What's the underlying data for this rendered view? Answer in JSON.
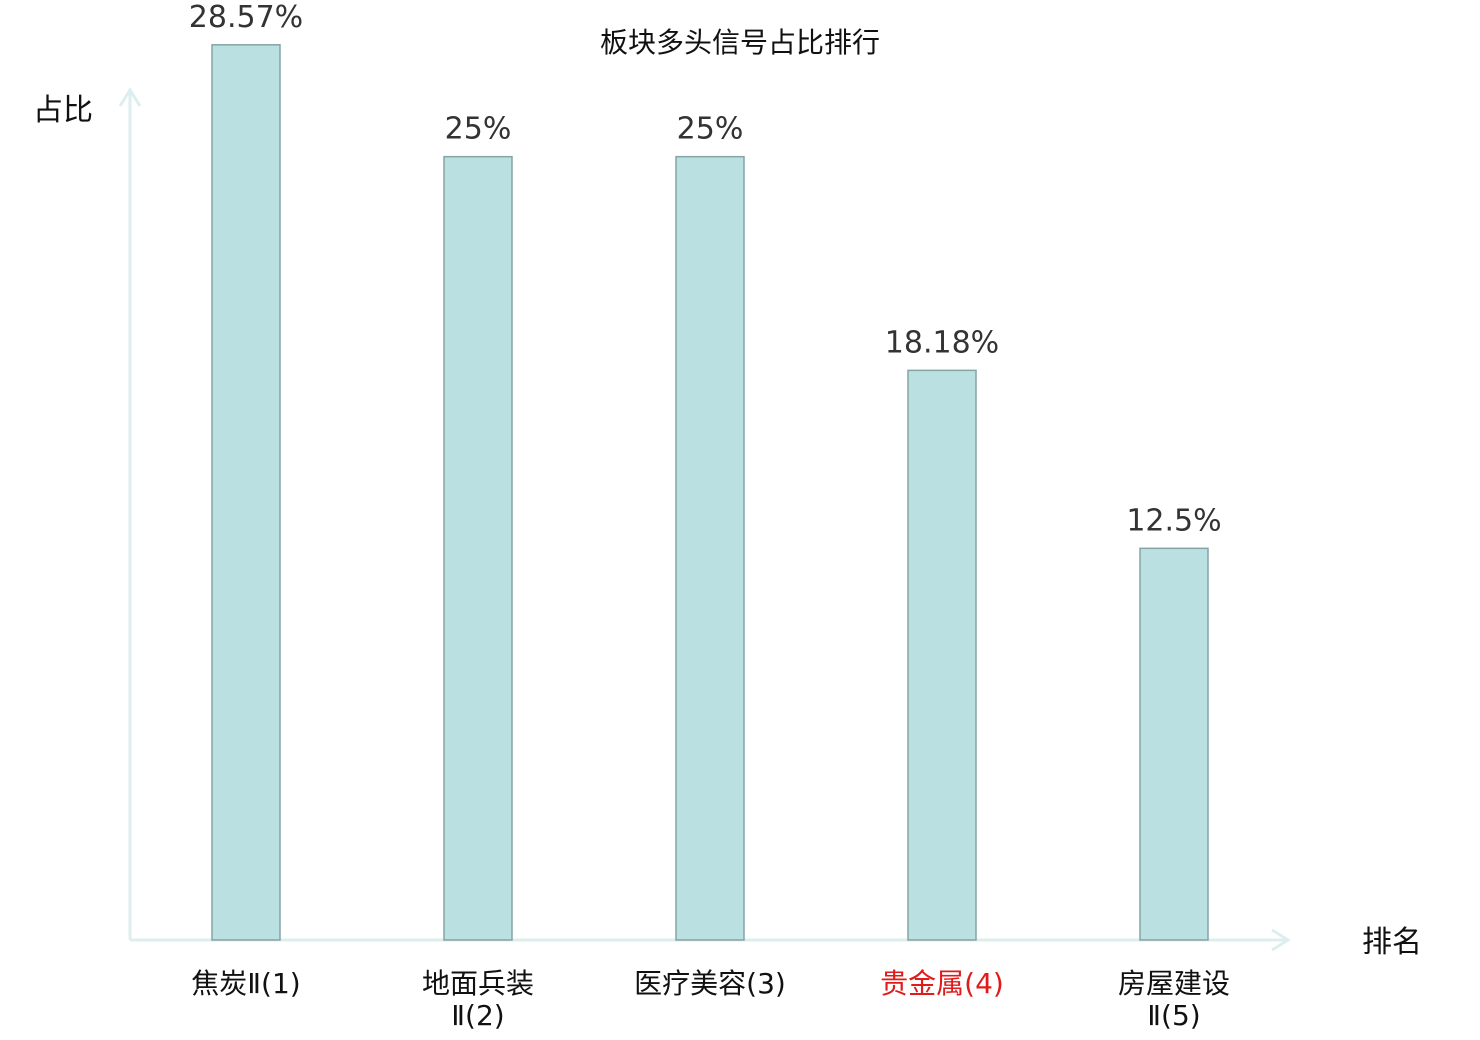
{
  "chart_data": {
    "type": "bar",
    "title": "板块多头信号占比排行",
    "ylabel": "占比",
    "xlabel": "排名",
    "ylim": [
      0,
      30
    ],
    "grid": false,
    "categories": [
      {
        "lines": [
          "焦炭Ⅱ(1)"
        ],
        "highlight": false
      },
      {
        "lines": [
          "地面兵装",
          "Ⅱ(2)"
        ],
        "highlight": false
      },
      {
        "lines": [
          "医疗美容(3)"
        ],
        "highlight": false
      },
      {
        "lines": [
          "贵金属(4)"
        ],
        "highlight": true
      },
      {
        "lines": [
          "房屋建设",
          "Ⅱ(5)"
        ],
        "highlight": false
      }
    ],
    "values": [
      28.57,
      25,
      25,
      18.18,
      12.5
    ],
    "value_labels": [
      "28.57%",
      "25%",
      "25%",
      "18.18%",
      "12.5%"
    ]
  },
  "colors": {
    "bar_fill": "#bbe0e2",
    "bar_stroke": "#86a3a5",
    "axis": "#dcefee",
    "highlight_text": "#e01b1b",
    "normal_text": "#111111"
  }
}
